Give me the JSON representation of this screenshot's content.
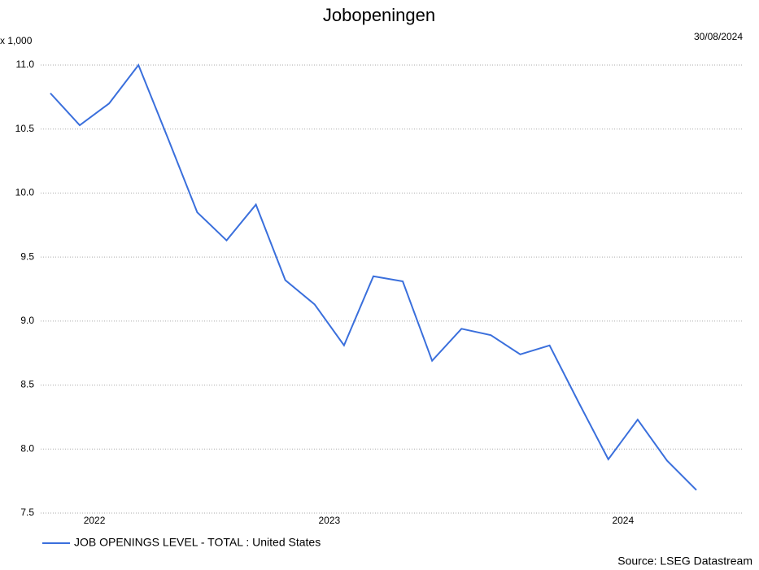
{
  "chart_data": {
    "type": "line",
    "title": "Jobopeningen",
    "unit_label": "x 1,000",
    "date_label": "30/08/2024",
    "source": "Source: LSEG Datastream",
    "x": [
      0,
      1,
      2,
      3,
      4,
      5,
      6,
      7,
      8,
      9,
      10,
      11,
      12,
      13,
      14,
      15,
      16,
      17,
      18,
      19,
      20,
      21,
      22
    ],
    "xlim": [
      -0.33,
      23.55
    ],
    "xticks": [
      {
        "value": 1.5,
        "label": "2022"
      },
      {
        "value": 9.5,
        "label": "2023"
      },
      {
        "value": 19.5,
        "label": "2024"
      }
    ],
    "ylim": [
      7.5,
      11.0
    ],
    "yticks": [
      {
        "value": 7.5,
        "label": "7.5"
      },
      {
        "value": 8.0,
        "label": "8.0"
      },
      {
        "value": 8.5,
        "label": "8.5"
      },
      {
        "value": 9.0,
        "label": "9.0"
      },
      {
        "value": 9.5,
        "label": "9.5"
      },
      {
        "value": 10.0,
        "label": "10.0"
      },
      {
        "value": 10.5,
        "label": "10.5"
      },
      {
        "value": 11.0,
        "label": "11.0"
      }
    ],
    "grid": true,
    "series": [
      {
        "name": "JOB OPENINGS LEVEL - TOTAL : United States",
        "color": "#3a6fdc",
        "values": [
          10.78,
          10.53,
          10.7,
          11.0,
          10.43,
          9.85,
          9.63,
          9.91,
          9.32,
          9.13,
          8.81,
          9.35,
          9.31,
          8.69,
          8.94,
          8.89,
          8.74,
          8.81,
          8.36,
          7.92,
          8.23,
          7.91,
          7.68
        ]
      }
    ]
  }
}
